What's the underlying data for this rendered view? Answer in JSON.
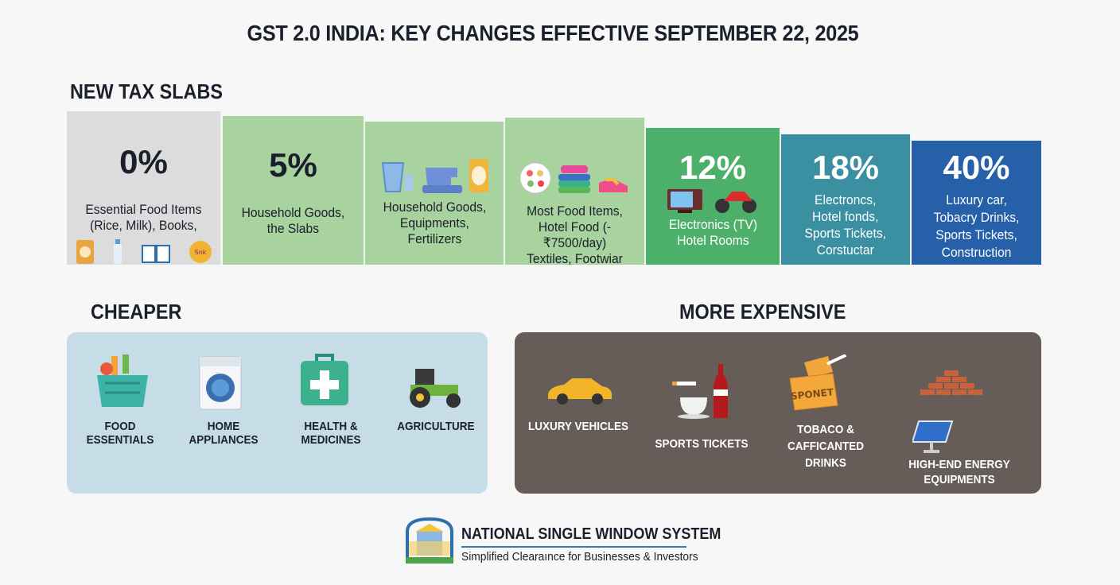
{
  "title": "GST 2.0 INDIA: KEY CHANGES EFFECTIVE SEPTEMBER 22, 2025",
  "slabs_heading": "NEW TAX SLABS",
  "slabs": [
    {
      "rate": "0%",
      "lines": [
        "Essential Food Items",
        "(Rice, Milk), Books,"
      ],
      "color": "#dcdcdc"
    },
    {
      "rate": "5%",
      "lines": [
        "Household Goods,",
        "the Slabs"
      ],
      "color": "#a8d29e"
    },
    {
      "rate": "",
      "lines": [
        "Household Goods,",
        "Equipments,",
        "Fertilizers"
      ],
      "color": "#a8d29e"
    },
    {
      "rate": "",
      "lines": [
        "Most Food Items,",
        "Hotel Food (-₹7500/day)",
        "Textiles, Footwiar"
      ],
      "color": "#a8d29e"
    },
    {
      "rate": "12%",
      "lines": [
        "Electronics (TV)",
        "Hotel Rooms"
      ],
      "color": "#4caf6a"
    },
    {
      "rate": "18%",
      "lines": [
        "Electroncs,",
        "Hotel fonds,",
        "Sports Tickets,",
        "Corstuctar"
      ],
      "color": "#3a8fa0"
    },
    {
      "rate": "40%",
      "lines": [
        "Luxury car,",
        "Tobacry Drinks,",
        "Sports Tickets,",
        "Construction"
      ],
      "color": "#2560a8"
    }
  ],
  "cheaper": {
    "heading": "CHEAPER",
    "items": [
      "FOOD ESSENTIALS",
      "HOME APPLIANCES",
      "HEALTH & MEDICINES",
      "AGRICULTURE"
    ]
  },
  "expensive": {
    "heading": "MORE EXPENSIVE",
    "items": [
      "LUXURY VEHICLES",
      "SPORTS TICKETS",
      "TOBACO &",
      "CAFFICANTED DRINKS",
      "HIGH-END ENERGY",
      "EQUIPMENTS"
    ],
    "ticket_text": "SPONET"
  },
  "footer": {
    "title": "NATIONAL SINGLE WINDOW SYSTEM",
    "subtitle": "Simplified Clearaınce for Businesses & Investors"
  }
}
